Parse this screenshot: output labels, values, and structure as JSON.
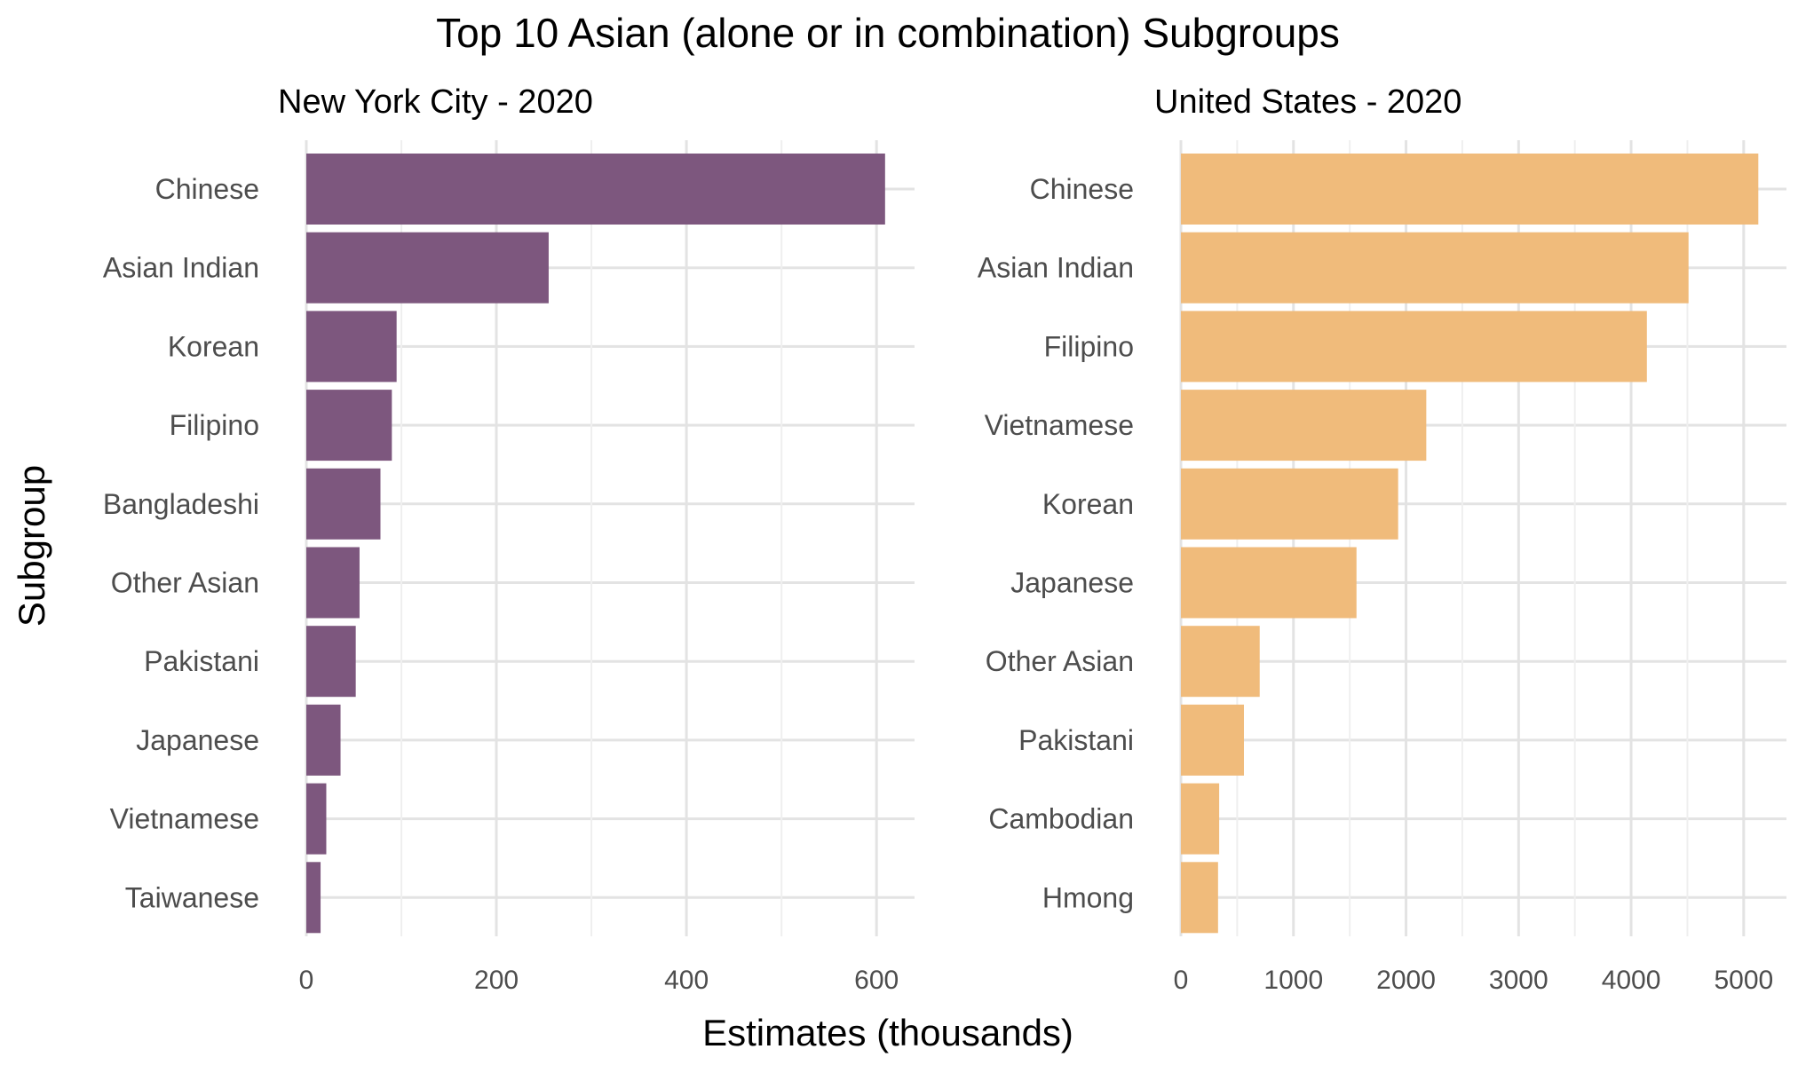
{
  "chart_data": {
    "type": "bar",
    "title": "Top 10 Asian (alone or in combination) Subgroups",
    "xlabel": "Estimates (thousands)",
    "ylabel": "Subgroup",
    "orientation": "horizontal",
    "grid": true,
    "panels": [
      {
        "subtitle": "New York City - 2020",
        "color": "#7D577E",
        "xlim": [
          0,
          640
        ],
        "ticks": [
          0,
          200,
          400,
          600
        ],
        "tick_labels": [
          "0",
          "200",
          "400",
          "600"
        ],
        "categories": [
          "Chinese",
          "Asian Indian",
          "Korean",
          "Filipino",
          "Bangladeshi",
          "Other Asian",
          "Pakistani",
          "Japanese",
          "Vietnamese",
          "Taiwanese"
        ],
        "values": [
          609,
          255,
          95,
          90,
          78,
          56,
          52,
          36,
          21,
          15
        ]
      },
      {
        "subtitle": "United States - 2020",
        "color": "#F0BB7B",
        "xlim": [
          0,
          5380
        ],
        "ticks": [
          0,
          1000,
          2000,
          3000,
          4000,
          5000
        ],
        "tick_labels": [
          "0",
          "1000",
          "2000",
          "3000",
          "4000",
          "5000"
        ],
        "categories": [
          "Chinese",
          "Asian Indian",
          "Filipino",
          "Vietnamese",
          "Korean",
          "Japanese",
          "Other Asian",
          "Pakistani",
          "Cambodian",
          "Hmong"
        ],
        "values": [
          5130,
          4510,
          4140,
          2180,
          1930,
          1560,
          700,
          560,
          340,
          330
        ]
      }
    ]
  }
}
